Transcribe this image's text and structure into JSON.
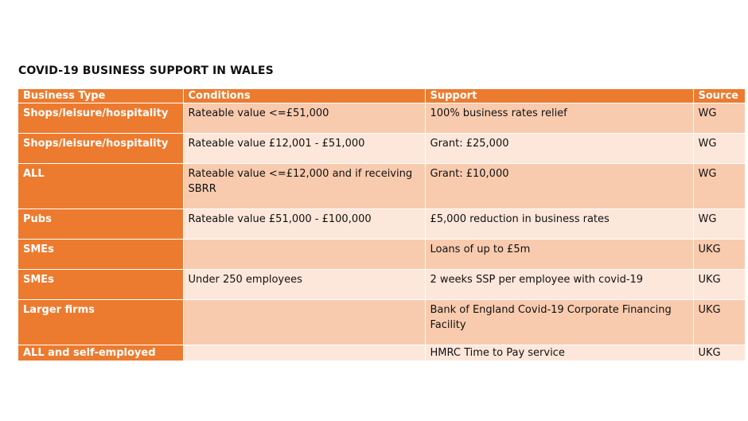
{
  "title": "COVID-19 BUSINESS SUPPORT IN WALES",
  "headers": {
    "business_type": "Business Type",
    "conditions": "Conditions",
    "support": "Support",
    "source": "Source"
  },
  "rows": [
    {
      "business_type": "Shops/leisure/hospitality",
      "conditions": "Rateable value <=£51,000",
      "support": "100% business rates relief",
      "source": "WG"
    },
    {
      "business_type": "Shops/leisure/hospitality",
      "conditions": "Rateable value £12,001 - £51,000",
      "support": "Grant: £25,000",
      "source": "WG"
    },
    {
      "business_type": "ALL",
      "conditions": "Rateable value <=£12,000 and if receiving SBRR",
      "support": "Grant: £10,000",
      "source": "WG"
    },
    {
      "business_type": "Pubs",
      "conditions": "Rateable value £51,000 - £100,000",
      "support": "£5,000 reduction in business rates",
      "source": "WG"
    },
    {
      "business_type": "SMEs",
      "conditions": "",
      "support": "Loans of up to £5m",
      "source": "UKG"
    },
    {
      "business_type": "SMEs",
      "conditions": "Under 250 employees",
      "support": "2 weeks SSP per employee with covid-19",
      "source": "UKG"
    },
    {
      "business_type": "Larger firms",
      "conditions": "",
      "support": "Bank of England Covid-19 Corporate Financing Facility",
      "source": "UKG"
    },
    {
      "business_type": "ALL and self-employed",
      "conditions": "",
      "support": "HMRC Time to Pay service",
      "source": "UKG"
    }
  ],
  "colors": {
    "header_orange": "#ec7b2f",
    "row_dark": "#f9cbae",
    "row_light": "#fde7da"
  }
}
